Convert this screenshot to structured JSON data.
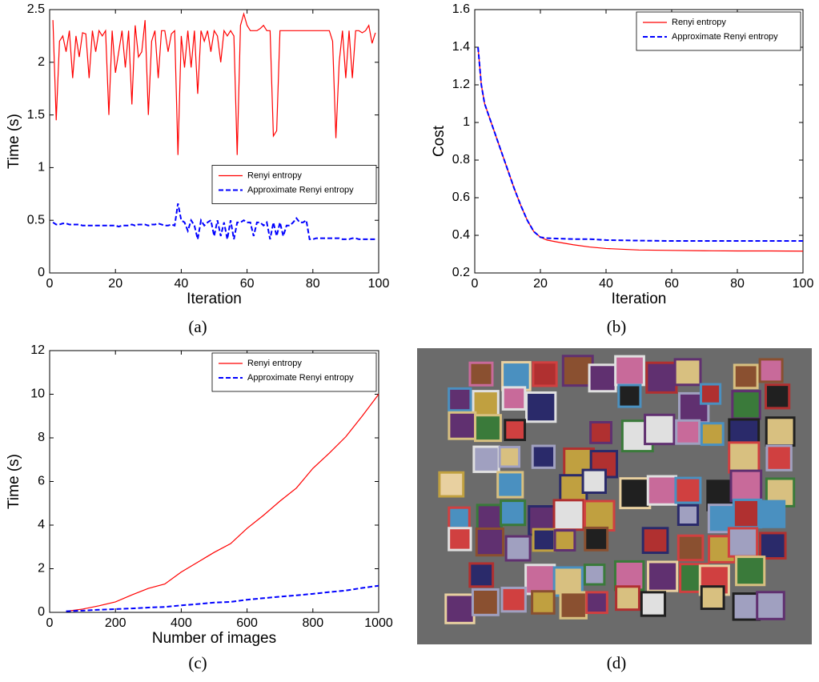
{
  "chart_data": [
    {
      "type": "line",
      "caption": "(a)",
      "xlabel": "Iteration",
      "ylabel": "Time (s)",
      "xlim": [
        0,
        100
      ],
      "xticks": [
        0,
        20,
        40,
        60,
        80,
        100
      ],
      "ylim": [
        0,
        2.5
      ],
      "yticks": [
        0,
        0.5,
        1,
        1.5,
        2,
        2.5
      ],
      "legend": "center right",
      "x": [
        1,
        2,
        3,
        4,
        5,
        6,
        7,
        8,
        9,
        10,
        11,
        12,
        13,
        14,
        15,
        16,
        17,
        18,
        19,
        20,
        21,
        22,
        23,
        24,
        25,
        26,
        27,
        28,
        29,
        30,
        31,
        32,
        33,
        34,
        35,
        36,
        37,
        38,
        39,
        40,
        41,
        42,
        43,
        44,
        45,
        46,
        47,
        48,
        49,
        50,
        51,
        52,
        53,
        54,
        55,
        56,
        57,
        58,
        59,
        60,
        61,
        62,
        63,
        64,
        65,
        66,
        67,
        68,
        69,
        70,
        71,
        72,
        73,
        74,
        75,
        76,
        77,
        78,
        79,
        80,
        81,
        82,
        83,
        84,
        85,
        86,
        87,
        88,
        89,
        90,
        91,
        92,
        93,
        94,
        95,
        96,
        97,
        98,
        99
      ],
      "series": [
        {
          "name": "Renyi entropy",
          "color": "#ff0000",
          "linestyle": "solid",
          "values": [
            2.4,
            1.45,
            2.2,
            2.25,
            2.1,
            2.3,
            1.85,
            2.25,
            2.05,
            2.28,
            2.27,
            1.85,
            2.3,
            2.1,
            2.3,
            2.25,
            2.3,
            1.5,
            2.3,
            1.9,
            2.1,
            2.3,
            1.95,
            2.3,
            1.6,
            2.35,
            2.05,
            2.1,
            2.4,
            1.5,
            2.2,
            2.3,
            1.85,
            2.3,
            2.3,
            2.1,
            2.27,
            2.3,
            1.12,
            2.25,
            1.95,
            2.3,
            1.95,
            2.3,
            1.7,
            2.3,
            2.2,
            2.3,
            2.1,
            2.3,
            2.25,
            2.0,
            2.3,
            2.25,
            2.3,
            2.25,
            1.12,
            2.35,
            2.46,
            2.35,
            2.3,
            2.3,
            2.3,
            2.32,
            2.35,
            2.3,
            2.3,
            1.3,
            1.35,
            2.3,
            2.3,
            2.3,
            2.3,
            2.3,
            2.3,
            2.3,
            2.3,
            2.3,
            2.3,
            2.3,
            2.3,
            2.3,
            2.3,
            2.3,
            2.3,
            2.2,
            1.28,
            2.0,
            2.3,
            1.85,
            2.3,
            1.85,
            2.3,
            2.3,
            2.28,
            2.3,
            2.35,
            2.18,
            2.28
          ]
        },
        {
          "name": "Approximate Renyi entropy",
          "color": "#0000ff",
          "linestyle": "dashed",
          "values": [
            0.48,
            0.46,
            0.46,
            0.47,
            0.47,
            0.46,
            0.46,
            0.46,
            0.46,
            0.45,
            0.45,
            0.45,
            0.45,
            0.45,
            0.45,
            0.45,
            0.45,
            0.45,
            0.45,
            0.45,
            0.44,
            0.45,
            0.45,
            0.45,
            0.46,
            0.45,
            0.46,
            0.46,
            0.46,
            0.45,
            0.46,
            0.46,
            0.47,
            0.46,
            0.45,
            0.45,
            0.46,
            0.45,
            0.66,
            0.5,
            0.48,
            0.4,
            0.5,
            0.45,
            0.32,
            0.5,
            0.45,
            0.48,
            0.5,
            0.35,
            0.5,
            0.35,
            0.48,
            0.32,
            0.5,
            0.32,
            0.48,
            0.48,
            0.5,
            0.48,
            0.48,
            0.35,
            0.48,
            0.48,
            0.45,
            0.48,
            0.32,
            0.48,
            0.35,
            0.48,
            0.35,
            0.45,
            0.45,
            0.48,
            0.52,
            0.48,
            0.48,
            0.5,
            0.32,
            0.32,
            0.33,
            0.33,
            0.33,
            0.33,
            0.33,
            0.33,
            0.33,
            0.33,
            0.32,
            0.32,
            0.32,
            0.33,
            0.33,
            0.32,
            0.32,
            0.32,
            0.32,
            0.32,
            0.32
          ]
        }
      ]
    },
    {
      "type": "line",
      "caption": "(b)",
      "xlabel": "Iteration",
      "ylabel": "Cost",
      "xlim": [
        0,
        100
      ],
      "xticks": [
        0,
        20,
        40,
        60,
        80,
        100
      ],
      "ylim": [
        0.2,
        1.6
      ],
      "yticks": [
        0.2,
        0.4,
        0.6,
        0.8,
        1,
        1.2,
        1.4,
        1.6
      ],
      "legend": "upper right",
      "x": [
        1,
        2,
        3,
        4,
        5,
        6,
        8,
        10,
        12,
        14,
        16,
        18,
        20,
        22,
        25,
        30,
        35,
        40,
        50,
        60,
        70,
        80,
        90,
        100
      ],
      "series": [
        {
          "name": "Renyi entropy",
          "color": "#ff0000",
          "linestyle": "solid",
          "values": [
            1.4,
            1.2,
            1.1,
            1.05,
            1.0,
            0.95,
            0.85,
            0.75,
            0.65,
            0.56,
            0.48,
            0.42,
            0.39,
            0.375,
            0.365,
            0.35,
            0.338,
            0.33,
            0.322,
            0.32,
            0.318,
            0.317,
            0.317,
            0.316
          ]
        },
        {
          "name": "Approximate Renyi entropy",
          "color": "#0000ff",
          "linestyle": "dashed",
          "values": [
            1.4,
            1.2,
            1.1,
            1.05,
            1.0,
            0.95,
            0.85,
            0.75,
            0.65,
            0.56,
            0.48,
            0.42,
            0.39,
            0.385,
            0.383,
            0.38,
            0.38,
            0.375,
            0.372,
            0.37,
            0.37,
            0.37,
            0.37,
            0.37
          ]
        }
      ]
    },
    {
      "type": "line",
      "caption": "(c)",
      "xlabel": "Number of images",
      "ylabel": "Time (s)",
      "xlim": [
        0,
        1000
      ],
      "xticks": [
        0,
        200,
        400,
        600,
        800,
        1000
      ],
      "ylim": [
        0,
        12
      ],
      "yticks": [
        0,
        2,
        4,
        6,
        8,
        10,
        12
      ],
      "legend": "upper right",
      "x": [
        50,
        100,
        150,
        200,
        250,
        300,
        350,
        400,
        450,
        500,
        550,
        600,
        650,
        700,
        750,
        800,
        850,
        900,
        950,
        1000
      ],
      "series": [
        {
          "name": "Renyi entropy",
          "color": "#ff0000",
          "linestyle": "solid",
          "values": [
            0.05,
            0.15,
            0.3,
            0.48,
            0.8,
            1.1,
            1.3,
            1.85,
            2.3,
            2.75,
            3.15,
            3.85,
            4.45,
            5.1,
            5.7,
            6.6,
            7.3,
            8.05,
            9.0,
            10.0
          ]
        },
        {
          "name": "Approximate Renyi entropy",
          "color": "#0000ff",
          "linestyle": "dashed",
          "values": [
            0.05,
            0.08,
            0.12,
            0.15,
            0.18,
            0.22,
            0.25,
            0.32,
            0.38,
            0.45,
            0.48,
            0.58,
            0.65,
            0.72,
            0.78,
            0.85,
            0.93,
            1.0,
            1.12,
            1.22
          ]
        }
      ]
    }
  ],
  "image_panel": {
    "caption": "(d)"
  }
}
